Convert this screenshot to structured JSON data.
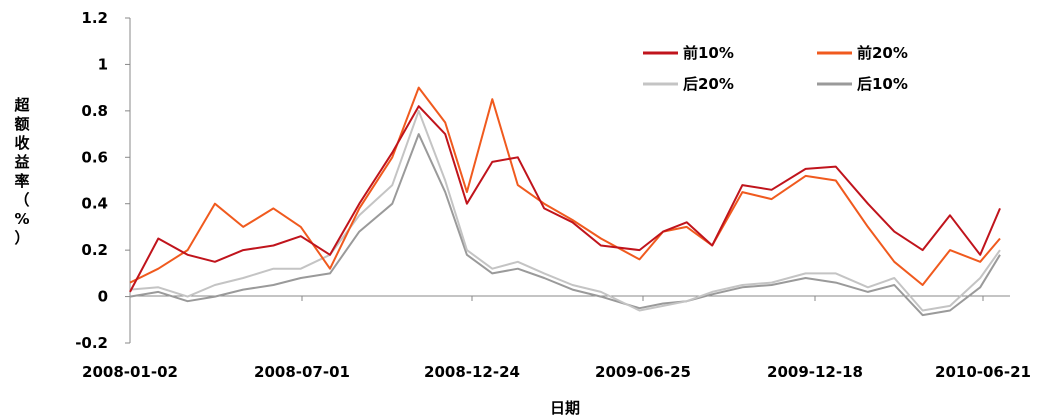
{
  "chart_data": {
    "type": "line",
    "title": "",
    "xlabel": "日期",
    "ylabel": "超额收益率（%）",
    "ylim": [
      -0.2,
      1.2
    ],
    "yticks": [
      "-0.2",
      "0",
      "0.2",
      "0.4",
      "0.6",
      "0.8",
      "1",
      "1.2"
    ],
    "ytick_values": [
      -0.2,
      0,
      0.2,
      0.4,
      0.6,
      0.8,
      1.0,
      1.2
    ],
    "xticks": [
      "2008-01-02",
      "2008-07-01",
      "2008-12-24",
      "2009-06-25",
      "2009-12-18",
      "2010-06-21"
    ],
    "x": [
      "2008-01-02",
      "2008-02-01",
      "2008-03-03",
      "2008-04-01",
      "2008-05-01",
      "2008-06-02",
      "2008-07-01",
      "2008-08-01",
      "2008-09-01",
      "2008-10-06",
      "2008-11-03",
      "2008-12-01",
      "2008-12-24",
      "2009-01-20",
      "2009-02-16",
      "2009-03-16",
      "2009-04-15",
      "2009-05-15",
      "2009-06-25",
      "2009-07-20",
      "2009-08-14",
      "2009-09-10",
      "2009-10-12",
      "2009-11-12",
      "2009-12-18",
      "2010-01-19",
      "2010-02-22",
      "2010-03-22",
      "2010-04-21",
      "2010-05-20",
      "2010-06-21",
      "2010-07-12"
    ],
    "series": [
      {
        "name": "前10%",
        "color": "#c0141c",
        "values": [
          0.02,
          0.25,
          0.18,
          0.15,
          0.2,
          0.22,
          0.26,
          0.18,
          0.4,
          0.62,
          0.82,
          0.7,
          0.4,
          0.58,
          0.6,
          0.38,
          0.32,
          0.22,
          0.2,
          0.28,
          0.32,
          0.22,
          0.48,
          0.46,
          0.55,
          0.56,
          0.4,
          0.28,
          0.2,
          0.35,
          0.18,
          0.38
        ]
      },
      {
        "name": "前20%",
        "color": "#f05a1e",
        "values": [
          0.06,
          0.12,
          0.2,
          0.4,
          0.3,
          0.38,
          0.3,
          0.12,
          0.38,
          0.6,
          0.9,
          0.75,
          0.45,
          0.85,
          0.48,
          0.4,
          0.33,
          0.25,
          0.16,
          0.28,
          0.3,
          0.22,
          0.45,
          0.42,
          0.52,
          0.5,
          0.3,
          0.15,
          0.05,
          0.2,
          0.15,
          0.25
        ]
      },
      {
        "name": "后20%",
        "color": "#c4c4c4",
        "values": [
          0.03,
          0.04,
          0.0,
          0.05,
          0.08,
          0.12,
          0.12,
          0.18,
          0.35,
          0.48,
          0.8,
          0.5,
          0.2,
          0.12,
          0.15,
          0.1,
          0.05,
          0.02,
          -0.06,
          -0.04,
          -0.02,
          0.02,
          0.05,
          0.06,
          0.1,
          0.1,
          0.04,
          0.08,
          -0.06,
          -0.04,
          0.08,
          0.2
        ]
      },
      {
        "name": "后10%",
        "color": "#9a9a9a",
        "values": [
          0.0,
          0.02,
          -0.02,
          0.0,
          0.03,
          0.05,
          0.08,
          0.1,
          0.28,
          0.4,
          0.7,
          0.45,
          0.18,
          0.1,
          0.12,
          0.08,
          0.03,
          0.0,
          -0.05,
          -0.03,
          -0.02,
          0.01,
          0.04,
          0.05,
          0.08,
          0.06,
          0.02,
          0.05,
          -0.08,
          -0.06,
          0.04,
          0.18
        ]
      }
    ],
    "legend": {
      "position": "top-right",
      "columns": 2
    },
    "grid": false
  }
}
